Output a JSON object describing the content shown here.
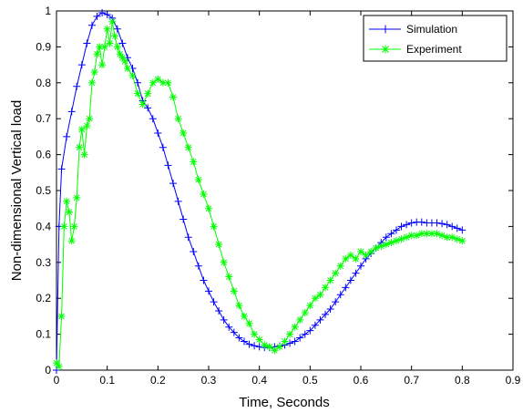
{
  "chart_data": {
    "type": "line",
    "xlabel": "Time, Seconds",
    "ylabel": "Non-dimensional Vertical load",
    "xlim": [
      0,
      0.9
    ],
    "ylim": [
      0,
      1
    ],
    "xticks": [
      "0",
      "0.1",
      "0.2",
      "0.3",
      "0.4",
      "0.5",
      "0.6",
      "0.7",
      "0.8",
      "0.9"
    ],
    "yticks": [
      "0",
      "0.1",
      "0.2",
      "0.3",
      "0.4",
      "0.5",
      "0.6",
      "0.7",
      "0.8",
      "0.9",
      "1"
    ],
    "grid": false,
    "legend_position": "top-right",
    "series": [
      {
        "name": "Simulation",
        "color": "#0000ff",
        "marker": "plus",
        "x": [
          0,
          0.005,
          0.01,
          0.02,
          0.03,
          0.04,
          0.05,
          0.06,
          0.07,
          0.08,
          0.09,
          0.1,
          0.11,
          0.12,
          0.13,
          0.14,
          0.15,
          0.16,
          0.17,
          0.18,
          0.19,
          0.2,
          0.21,
          0.22,
          0.23,
          0.24,
          0.25,
          0.26,
          0.27,
          0.28,
          0.29,
          0.3,
          0.31,
          0.32,
          0.33,
          0.34,
          0.35,
          0.36,
          0.37,
          0.38,
          0.39,
          0.4,
          0.41,
          0.42,
          0.43,
          0.44,
          0.45,
          0.46,
          0.47,
          0.48,
          0.49,
          0.5,
          0.51,
          0.52,
          0.53,
          0.54,
          0.55,
          0.56,
          0.57,
          0.58,
          0.59,
          0.6,
          0.61,
          0.62,
          0.63,
          0.64,
          0.65,
          0.66,
          0.67,
          0.68,
          0.69,
          0.7,
          0.71,
          0.72,
          0.73,
          0.74,
          0.75,
          0.76,
          0.77,
          0.78,
          0.79,
          0.8
        ],
        "y": [
          0.0,
          0.4,
          0.56,
          0.65,
          0.72,
          0.79,
          0.85,
          0.91,
          0.96,
          0.985,
          0.995,
          0.99,
          0.98,
          0.95,
          0.91,
          0.87,
          0.84,
          0.8,
          0.75,
          0.73,
          0.7,
          0.66,
          0.62,
          0.57,
          0.52,
          0.47,
          0.42,
          0.37,
          0.33,
          0.29,
          0.25,
          0.22,
          0.19,
          0.165,
          0.14,
          0.12,
          0.105,
          0.09,
          0.08,
          0.072,
          0.068,
          0.065,
          0.063,
          0.063,
          0.065,
          0.067,
          0.07,
          0.075,
          0.08,
          0.09,
          0.1,
          0.11,
          0.125,
          0.14,
          0.155,
          0.17,
          0.19,
          0.21,
          0.23,
          0.25,
          0.27,
          0.29,
          0.31,
          0.325,
          0.34,
          0.355,
          0.37,
          0.38,
          0.39,
          0.4,
          0.405,
          0.41,
          0.412,
          0.412,
          0.41,
          0.41,
          0.41,
          0.408,
          0.405,
          0.4,
          0.395,
          0.39
        ]
      },
      {
        "name": "Experiment",
        "color": "#00ff00",
        "marker": "star",
        "x": [
          0,
          0.005,
          0.01,
          0.015,
          0.02,
          0.025,
          0.03,
          0.035,
          0.04,
          0.045,
          0.05,
          0.055,
          0.06,
          0.065,
          0.07,
          0.075,
          0.08,
          0.085,
          0.09,
          0.095,
          0.1,
          0.105,
          0.11,
          0.115,
          0.12,
          0.125,
          0.13,
          0.135,
          0.14,
          0.15,
          0.16,
          0.17,
          0.18,
          0.19,
          0.2,
          0.21,
          0.22,
          0.23,
          0.24,
          0.25,
          0.26,
          0.27,
          0.28,
          0.29,
          0.3,
          0.31,
          0.32,
          0.33,
          0.34,
          0.35,
          0.36,
          0.37,
          0.38,
          0.39,
          0.4,
          0.41,
          0.42,
          0.43,
          0.44,
          0.45,
          0.46,
          0.47,
          0.48,
          0.49,
          0.5,
          0.51,
          0.52,
          0.53,
          0.54,
          0.55,
          0.56,
          0.57,
          0.58,
          0.59,
          0.6,
          0.61,
          0.62,
          0.63,
          0.64,
          0.65,
          0.66,
          0.67,
          0.68,
          0.69,
          0.7,
          0.71,
          0.72,
          0.73,
          0.74,
          0.75,
          0.76,
          0.77,
          0.78,
          0.79,
          0.8
        ],
        "y": [
          0.02,
          0.01,
          0.15,
          0.4,
          0.47,
          0.44,
          0.36,
          0.4,
          0.48,
          0.62,
          0.67,
          0.6,
          0.68,
          0.7,
          0.8,
          0.83,
          0.88,
          0.9,
          0.85,
          0.9,
          0.95,
          0.91,
          0.97,
          0.93,
          0.9,
          0.88,
          0.87,
          0.86,
          0.84,
          0.82,
          0.77,
          0.74,
          0.77,
          0.8,
          0.81,
          0.8,
          0.8,
          0.76,
          0.7,
          0.66,
          0.62,
          0.58,
          0.53,
          0.49,
          0.45,
          0.4,
          0.35,
          0.3,
          0.26,
          0.22,
          0.18,
          0.15,
          0.13,
          0.1,
          0.085,
          0.07,
          0.065,
          0.055,
          0.065,
          0.08,
          0.1,
          0.12,
          0.14,
          0.16,
          0.18,
          0.2,
          0.21,
          0.23,
          0.25,
          0.27,
          0.29,
          0.31,
          0.32,
          0.31,
          0.33,
          0.32,
          0.33,
          0.34,
          0.345,
          0.35,
          0.355,
          0.36,
          0.365,
          0.37,
          0.375,
          0.375,
          0.38,
          0.38,
          0.38,
          0.38,
          0.375,
          0.37,
          0.37,
          0.365,
          0.36
        ]
      }
    ]
  }
}
